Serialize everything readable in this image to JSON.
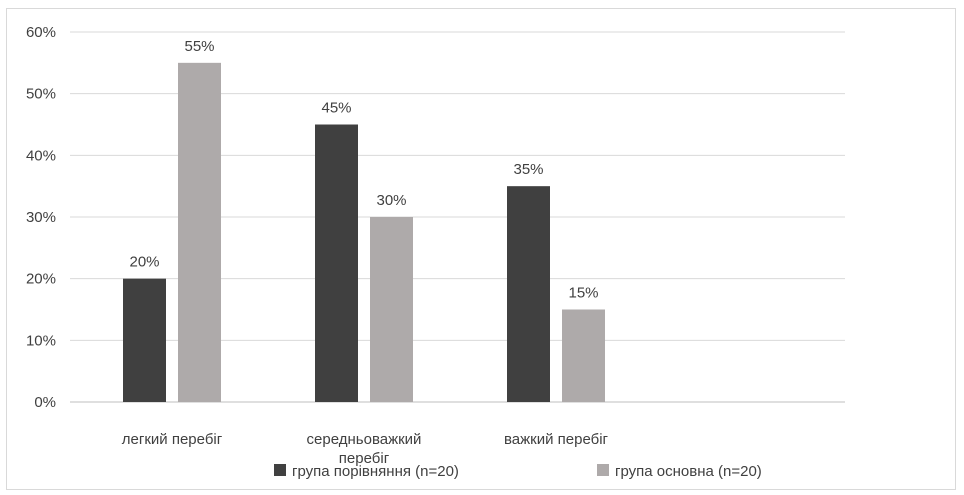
{
  "chart_data": {
    "type": "bar",
    "categories": [
      "легкий перебіг",
      "середньоважкий перебіг",
      "важкий перебіг"
    ],
    "series": [
      {
        "name": "група порівняння (n=20)",
        "values": [
          20,
          45,
          35
        ],
        "color": "#404040"
      },
      {
        "name": "група основна (n=20)",
        "values": [
          55,
          30,
          15
        ],
        "color": "#aeaaaa"
      }
    ],
    "data_labels": [
      [
        "20%",
        "45%",
        "35%"
      ],
      [
        "55%",
        "30%",
        "15%"
      ]
    ],
    "y_ticks": [
      "0%",
      "10%",
      "20%",
      "30%",
      "40%",
      "50%",
      "60%"
    ],
    "ylim": [
      0,
      60
    ],
    "grid": true,
    "legend": "bottom",
    "gridline_color": "#d9d9d9",
    "axis_color": "#bfbfbf"
  }
}
